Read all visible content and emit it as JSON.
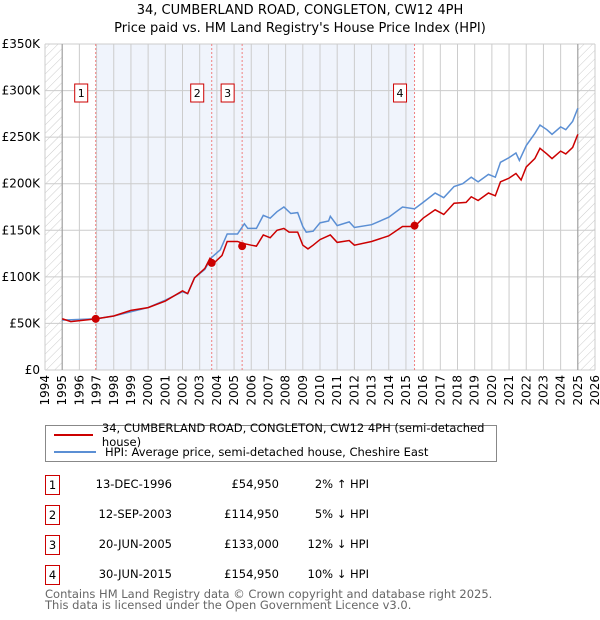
{
  "chart_data": {
    "type": "line",
    "title": "34, CUMBERLAND ROAD, CONGLETON, CW12 4PH",
    "subtitle": "Price paid vs. HM Land Registry's House Price Index (HPI)",
    "xlim": [
      1994,
      2026
    ],
    "ylim": [
      0,
      350000
    ],
    "x_ticks": [
      "1994",
      "1995",
      "1996",
      "1997",
      "1998",
      "1999",
      "2000",
      "2001",
      "2002",
      "2003",
      "2004",
      "2005",
      "2006",
      "2007",
      "2008",
      "2009",
      "2010",
      "2011",
      "2012",
      "2013",
      "2014",
      "2015",
      "2016",
      "2017",
      "2018",
      "2019",
      "2020",
      "2021",
      "2022",
      "2023",
      "2024",
      "2025",
      "2026"
    ],
    "y_ticks": [
      {
        "v": 0,
        "l": "£0"
      },
      {
        "v": 50000,
        "l": "£50K"
      },
      {
        "v": 100000,
        "l": "£100K"
      },
      {
        "v": 150000,
        "l": "£150K"
      },
      {
        "v": 200000,
        "l": "£200K"
      },
      {
        "v": 250000,
        "l": "£250K"
      },
      {
        "v": 300000,
        "l": "£300K"
      },
      {
        "v": 350000,
        "l": "£350K"
      }
    ],
    "grid": true,
    "shaded_period": [
      1996.95,
      2015.5
    ],
    "hatched_before": 1995,
    "hatched_after": 2025,
    "series": [
      {
        "name": "34, CUMBERLAND ROAD, CONGLETON, CW12 4PH (semi-detached house)",
        "color": "#cc0000",
        "x": [
          1995,
          1995.5,
          1996.5,
          1997,
          1998,
          1999,
          2000,
          2001,
          2002,
          2002.3,
          2002.7,
          2003.3,
          2003.6,
          2003.9,
          2004.3,
          2004.6,
          2005.2,
          2005.5,
          2006,
          2006.3,
          2006.7,
          2007.1,
          2007.5,
          2007.9,
          2008.2,
          2008.7,
          2009,
          2009.3,
          2009.6,
          2010,
          2010.6,
          2011,
          2011.7,
          2012,
          2013,
          2014,
          2014.8,
          2015.5,
          2016,
          2016.7,
          2017.2,
          2017.8,
          2018.5,
          2018.8,
          2019.2,
          2019.8,
          2020.2,
          2020.5,
          2021,
          2021.4,
          2021.7,
          2022,
          2022.5,
          2022.8,
          2023.2,
          2023.5,
          2024,
          2024.3,
          2024.7,
          2025
        ],
        "y": [
          55000,
          52000,
          54000,
          55000,
          58000,
          64000,
          67000,
          74000,
          85000,
          82000,
          99000,
          109000,
          120000,
          116000,
          123000,
          138000,
          138000,
          136000,
          134000,
          133000,
          145000,
          142000,
          150000,
          152000,
          148000,
          148000,
          134000,
          130000,
          134000,
          140000,
          145000,
          137000,
          139000,
          134000,
          138000,
          144000,
          154000,
          154000,
          163000,
          172000,
          167000,
          179000,
          180000,
          186000,
          182000,
          190000,
          187000,
          202000,
          206000,
          211000,
          204000,
          218000,
          227000,
          238000,
          232000,
          227000,
          235000,
          232000,
          239000,
          253000
        ]
      },
      {
        "name": "HPI: Average price, semi-detached house, Cheshire East",
        "color": "#5b8fd4",
        "x": [
          1995,
          1997,
          1998,
          2000,
          2001,
          2002,
          2002.3,
          2002.7,
          2003.3,
          2003.7,
          2004.2,
          2004.6,
          2005.2,
          2005.6,
          2005.8,
          2006.3,
          2006.7,
          2007.1,
          2007.5,
          2007.9,
          2008.3,
          2008.7,
          2009,
          2009.2,
          2009.6,
          2010,
          2010.5,
          2010.6,
          2011,
          2011.7,
          2012,
          2013,
          2014,
          2014.8,
          2015.5,
          2016,
          2016.7,
          2017.2,
          2017.8,
          2018.3,
          2018.8,
          2019.2,
          2019.8,
          2020.2,
          2020.5,
          2021,
          2021.4,
          2021.6,
          2022,
          2022.5,
          2022.8,
          2023.2,
          2023.5,
          2024,
          2024.3,
          2024.7,
          2025
        ],
        "y": [
          53600,
          55000,
          58000,
          67000,
          75000,
          84000,
          82000,
          99000,
          108000,
          121000,
          129000,
          146000,
          146000,
          157000,
          152000,
          152000,
          166000,
          163000,
          170000,
          175000,
          168000,
          169000,
          154000,
          148000,
          149000,
          158000,
          160000,
          165000,
          155000,
          159000,
          153000,
          156000,
          164000,
          175000,
          173000,
          180000,
          190000,
          185000,
          197000,
          200000,
          207000,
          202000,
          210000,
          207000,
          223000,
          228000,
          233000,
          225000,
          241000,
          254000,
          263000,
          258000,
          253000,
          261000,
          258000,
          267000,
          281000
        ]
      }
    ],
    "sales": [
      {
        "n": "1",
        "date": "13-DEC-1996",
        "x": 1996.95,
        "price": 54950,
        "price_label": "£54,950",
        "hpi": "2% ↑ HPI"
      },
      {
        "n": "2",
        "date": "12-SEP-2003",
        "x": 2003.7,
        "price": 114950,
        "price_label": "£114,950",
        "hpi": "5% ↓ HPI"
      },
      {
        "n": "3",
        "date": "20-JUN-2005",
        "x": 2005.47,
        "price": 133000,
        "price_label": "£133,000",
        "hpi": "12% ↓ HPI"
      },
      {
        "n": "4",
        "date": "30-JUN-2015",
        "x": 2015.5,
        "price": 154950,
        "price_label": "£154,950",
        "hpi": "10% ↓ HPI"
      }
    ]
  },
  "footer": {
    "line1": "Contains HM Land Registry data © Crown copyright and database right 2025.",
    "line2": "This data is licensed under the Open Government Licence v3.0."
  }
}
